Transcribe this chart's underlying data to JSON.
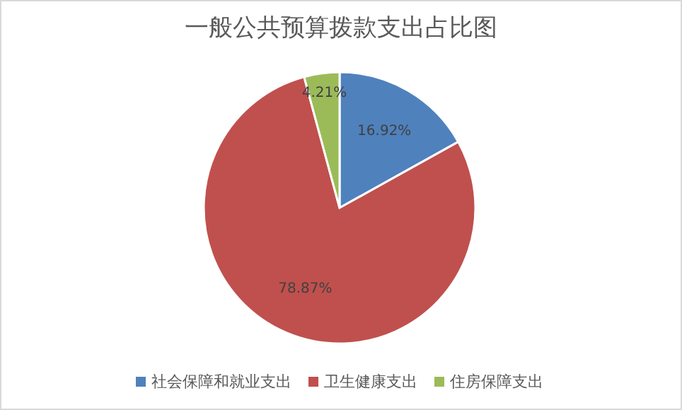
{
  "chart_data": {
    "type": "pie",
    "title": "一般公共预算拨款支出占比图",
    "categories": [
      "社会保障和就业支出",
      "卫生健康支出",
      "住房保障支出"
    ],
    "values": [
      16.92,
      78.87,
      4.21
    ],
    "colors": [
      "#4f81bd",
      "#c0504d",
      "#9bbb59"
    ],
    "value_labels": [
      "16.92%",
      "78.87%",
      "4.21%"
    ],
    "legend": "bottom"
  }
}
